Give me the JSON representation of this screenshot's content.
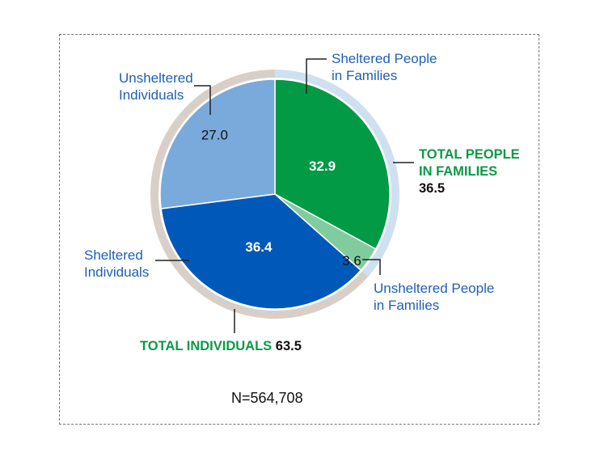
{
  "chart_data": {
    "type": "pie",
    "slices": [
      {
        "label": "Sheltered People in Families",
        "value": 32.9,
        "color": "#029a45",
        "text_color": "#ffffff"
      },
      {
        "label": "Unsheltered People in Families",
        "value": 3.6,
        "color": "#80cc9f",
        "text_color": "#111111"
      },
      {
        "label": "Sheltered Individuals",
        "value": 36.4,
        "color": "#0059b8",
        "text_color": "#ffffff"
      },
      {
        "label": "Unsheltered Individuals",
        "value": 27.0,
        "color": "#7aaadb",
        "text_color": "#111111"
      }
    ],
    "groups": [
      {
        "label": "TOTAL PEOPLE IN FAMILIES",
        "value": "36.5",
        "color": "#cfe0f0"
      },
      {
        "label": "TOTAL INDIVIDUALS",
        "value": "63.5",
        "color": "#d8d0c8"
      }
    ],
    "label_lines": {
      "sheltered_families": [
        "Sheltered People",
        "in Families"
      ],
      "unsheltered_families": [
        "Unsheltered People",
        "in Families"
      ],
      "sheltered_individuals": [
        "Sheltered",
        "Individuals"
      ],
      "unsheltered_individuals": [
        "Unsheltered",
        "Individuals"
      ],
      "total_families": [
        "TOTAL PEOPLE",
        "IN FAMILIES"
      ]
    },
    "note": "N=564,708"
  }
}
